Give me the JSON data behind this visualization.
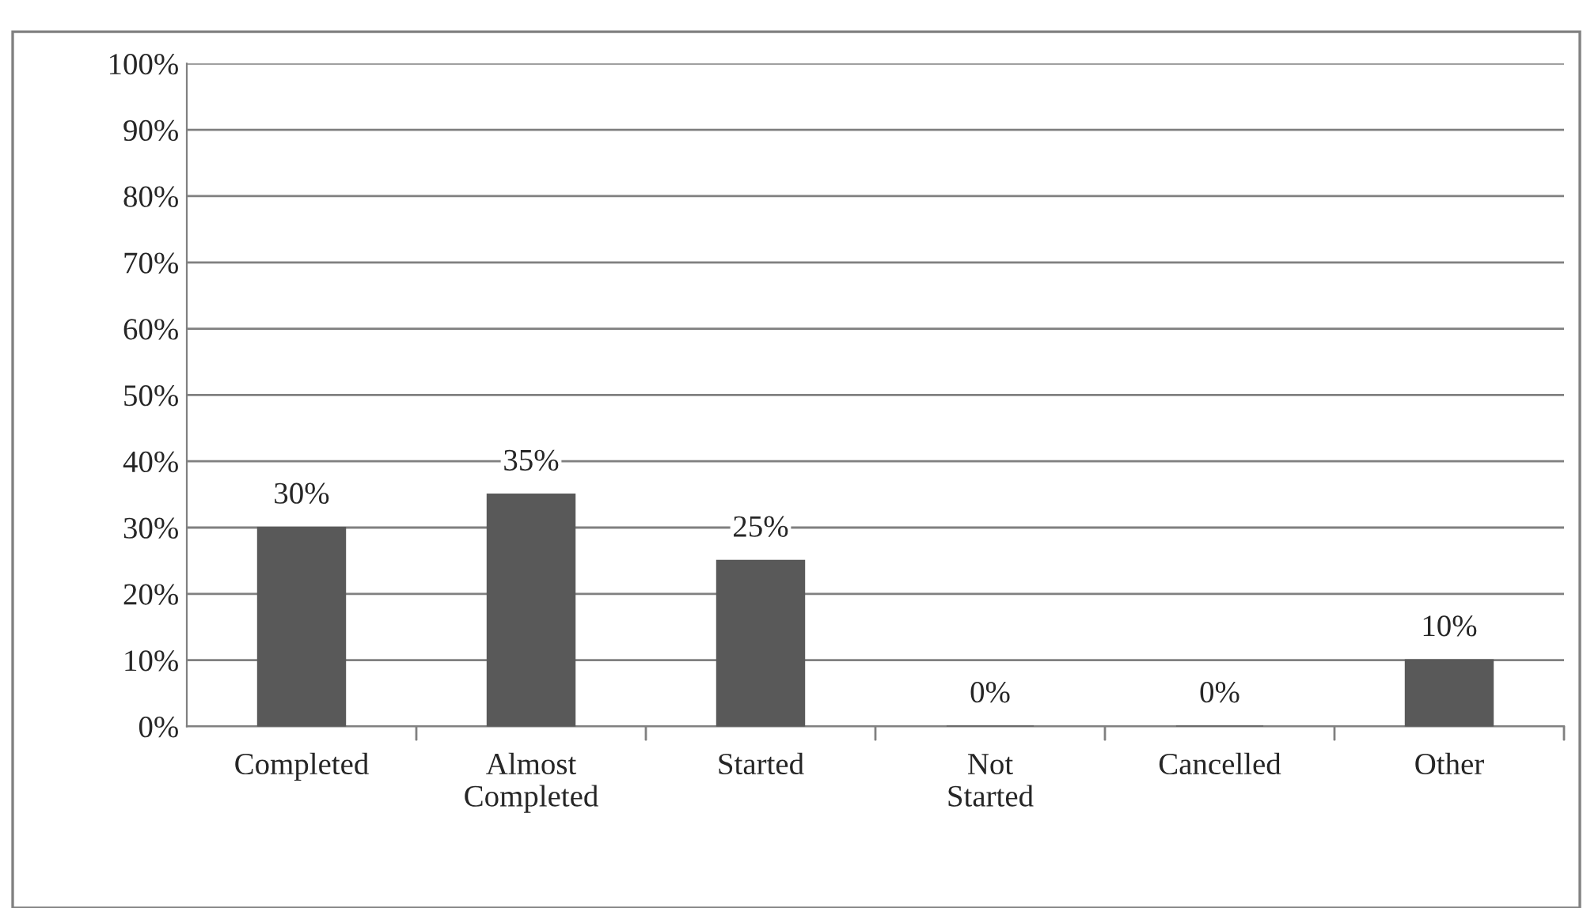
{
  "chart_data": {
    "type": "bar",
    "categories": [
      "Completed",
      "Almost Completed",
      "Started",
      "Not Started",
      "Cancelled",
      "Other"
    ],
    "values": [
      30,
      35,
      25,
      0,
      0,
      10
    ],
    "value_labels": [
      "30%",
      "35%",
      "25%",
      "0%",
      "0%",
      "10%"
    ],
    "color": "#595959",
    "ylim": [
      0,
      100
    ],
    "yticks": [
      {
        "value": 0,
        "label": "0%"
      },
      {
        "value": 10,
        "label": "10%"
      },
      {
        "value": 20,
        "label": "20%"
      },
      {
        "value": 30,
        "label": "30%"
      },
      {
        "value": 40,
        "label": "40%"
      },
      {
        "value": 50,
        "label": "50%"
      },
      {
        "value": 60,
        "label": "60%"
      },
      {
        "value": 70,
        "label": "70%"
      },
      {
        "value": 80,
        "label": "80%"
      },
      {
        "value": 90,
        "label": "90%"
      },
      {
        "value": 100,
        "label": "100%"
      }
    ],
    "grid": "y",
    "legend": false
  }
}
